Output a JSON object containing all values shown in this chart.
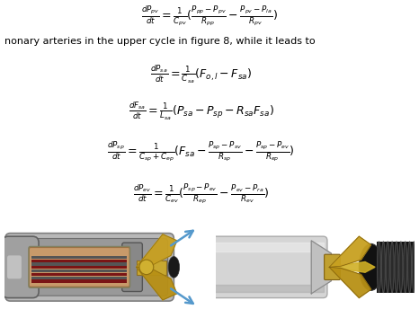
{
  "background_color": "#ffffff",
  "eq1": "$\\frac{dP_{pv}}{dt} = \\frac{1}{C_{pv}}(\\frac{P_{pp} - P_{pv}}{R_{pp}} - \\frac{P_{pv} - P_{la}}{R_{pv}})$",
  "text_line": "nonary arteries in the upper cycle in figure 8, while it leads to",
  "equations": [
    "$\\frac{dP_{sa}}{dt} = \\frac{1}{C_{sa}}(F_{o,l} - F_{sa})$",
    "$\\frac{dF_{sa}}{dt} = \\frac{1}{L_{sa}}(P_{sa} - P_{sp} - R_{sa}F_{sa})$",
    "$\\frac{dP_{sp}}{dt} = \\frac{1}{C_{sp} + C_{ep}}(F_{sa} - \\frac{P_{sp} - P_{sv}}{R_{sp}} - \\frac{P_{sp} - P_{ev}}{R_{ep}})$",
    "$\\frac{dP_{ev}}{dt} = \\frac{1}{C_{ev}}(\\frac{P_{sp} - P_{ev}}{R_{ep}} - \\frac{P_{ev} - P_{ra}}{R_{ev}})$"
  ],
  "img_left_bg": "#194080",
  "img_right_bg": "#153060",
  "fig_width": 4.66,
  "fig_height": 3.54,
  "dpi": 100
}
